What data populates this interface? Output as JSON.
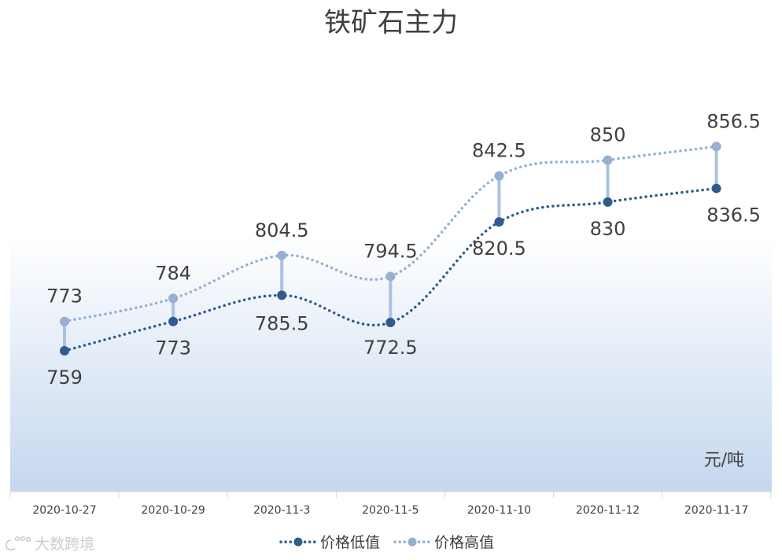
{
  "chart_data": {
    "type": "line",
    "title": "铁矿石主力",
    "categories": [
      "2020-10-27",
      "2020-10-29",
      "2020-11-3",
      "2020-11-5",
      "2020-11-10",
      "2020-11-12",
      "2020-11-17"
    ],
    "series": [
      {
        "name": "价格低值",
        "values": [
          759,
          773,
          785.5,
          772.5,
          820.5,
          830,
          836.5
        ],
        "labels": [
          "759",
          "773",
          "785.5",
          "772.5",
          "820.5",
          "830",
          "836.5"
        ],
        "color": "#2e5c8f"
      },
      {
        "name": "价格高值",
        "values": [
          773,
          784,
          804.5,
          794.5,
          842.5,
          850,
          856.5
        ],
        "labels": [
          "773",
          "784",
          "804.5",
          "794.5",
          "842.5",
          "850",
          "856.5"
        ],
        "color": "#95b0d2"
      }
    ],
    "unit": "元/吨",
    "high_low_lines": true,
    "legend_position": "bottom",
    "grid": false,
    "background": "gradient-blue-bottom"
  },
  "watermark": {
    "text": "大数跨境"
  },
  "colors": {
    "high_low_line": "#aac2e0",
    "gradient_bottom": "#c5d7ee",
    "axis": "#d9d9d9",
    "text": "#404040"
  }
}
